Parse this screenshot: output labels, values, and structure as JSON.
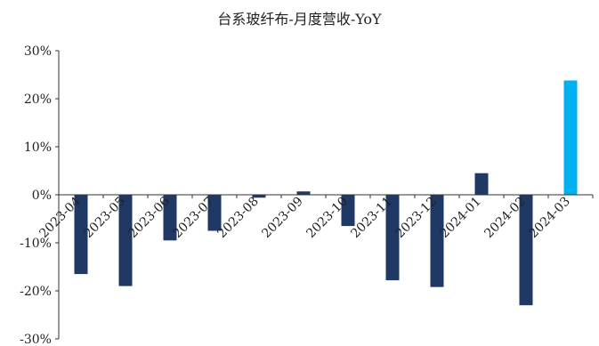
{
  "chart_data": {
    "type": "bar",
    "title": "台系玻纤布-月度营收-YoY",
    "xlabel": "",
    "ylabel": "",
    "categories": [
      "2023-04",
      "2023-05",
      "2023-06",
      "2023-07",
      "2023-08",
      "2023-09",
      "2023-10",
      "2023-11",
      "2023-12",
      "2024-01",
      "2024-02",
      "2024-03"
    ],
    "values": [
      -16.5,
      -19.0,
      -9.5,
      -7.5,
      -0.6,
      0.7,
      -6.5,
      -17.8,
      -19.2,
      4.5,
      -23.0,
      23.8
    ],
    "ylim": [
      -30,
      30
    ],
    "yticks": [
      -30,
      -20,
      -10,
      0,
      10,
      20,
      30
    ],
    "ytick_labels": [
      "-30%",
      "-20%",
      "-10%",
      "0%",
      "10%",
      "20%",
      "30%"
    ],
    "grid": false,
    "legend": "none",
    "colors": {
      "default": "#1f3864",
      "highlight": "#00b0f0"
    },
    "highlight_index": 11
  }
}
